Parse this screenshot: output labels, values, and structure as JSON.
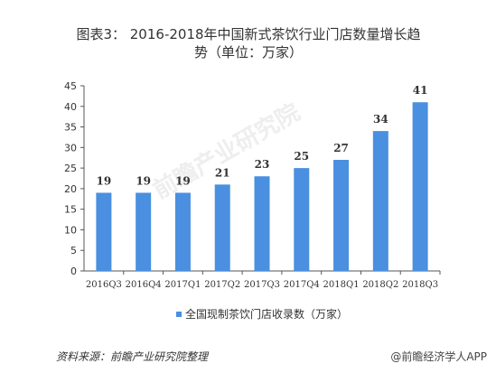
{
  "title": {
    "line1": "图表3： 2016-2018年中国新式茶饮行业门店数量增长趋",
    "line2": "势（单位：万家）"
  },
  "watermark": "前瞻产业研究院",
  "footer": {
    "source": "资料来源：前瞻产业研究院整理",
    "brand": "@前瞻经济学人APP"
  },
  "chart_data": {
    "type": "bar",
    "categories": [
      "2016Q3",
      "2016Q4",
      "2017Q1",
      "2017Q2",
      "2017Q3",
      "2017Q4",
      "2018Q1",
      "2018Q2",
      "2018Q3"
    ],
    "series": [
      {
        "name": "全国现制茶饮门店收录数（万家）",
        "values": [
          19,
          19,
          19,
          21,
          23,
          25,
          27,
          34,
          41
        ]
      }
    ],
    "ylim": [
      0,
      45
    ],
    "yticks": [
      0,
      5,
      10,
      15,
      20,
      25,
      30,
      35,
      40,
      45
    ],
    "grid": false,
    "legend": "bottom",
    "colors": {
      "bar": "#4A8FE0",
      "label": "#333333",
      "axis": "#555555"
    }
  }
}
